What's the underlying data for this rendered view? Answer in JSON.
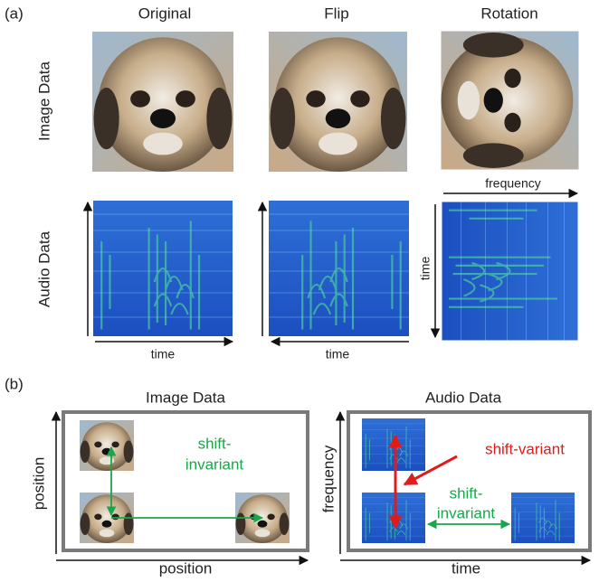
{
  "panel_a": {
    "label": "(a)",
    "columns": [
      "Original",
      "Flip",
      "Rotation"
    ],
    "rows": [
      "Image Data",
      "Audio Data"
    ],
    "axes": {
      "original_x": "time",
      "flip_x": "time",
      "rotation_top": "frequency",
      "rotation_side": "time"
    }
  },
  "panel_b": {
    "label": "(b)",
    "image": {
      "title": "Image Data",
      "x_label": "position",
      "y_label": "position",
      "note": [
        "shift-",
        "invariant"
      ]
    },
    "audio": {
      "title": "Audio Data",
      "x_label": "time",
      "y_label": "frequency",
      "variant": "shift-variant",
      "invariant": [
        "shift-",
        "invariant"
      ]
    }
  }
}
